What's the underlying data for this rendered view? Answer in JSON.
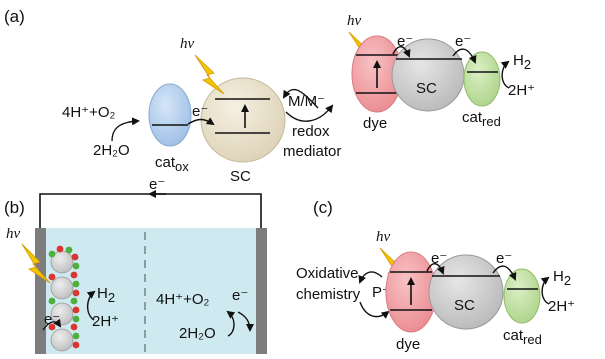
{
  "panels": {
    "a": {
      "label": "(a)",
      "hv_left": "hv",
      "hv_right": "hv",
      "water_products": "4H⁺+O₂",
      "water": "2H₂O",
      "cat_ox_base": "cat",
      "cat_ox_sub": "ox",
      "sc_left": "SC",
      "electron_left": "e⁻",
      "mediator_pair": "M/M⁻",
      "mediator_line1": "redox",
      "mediator_line2": "mediator",
      "dye": "dye",
      "electron_dye": "e⁻",
      "sc_right": "SC",
      "electron_sc": "e⁻",
      "h2_base": "H",
      "h2_sub": "2",
      "protons": "2H⁺",
      "cat_red_base": "cat",
      "cat_red_sub": "red"
    },
    "b": {
      "label": "(b)",
      "hv": "hv",
      "electron_top": "e⁻",
      "electron_left": "e⁻",
      "h2_base": "H",
      "h2_sub": "2",
      "protons": "2H⁺",
      "water_products": "4H⁺+O₂",
      "electron_right": "e⁻",
      "water": "2H₂O"
    },
    "c": {
      "label": "(c)",
      "hv": "hv",
      "oxidative_line1": "Oxidative",
      "oxidative_line2": "chemistry",
      "radical": "P⁺•",
      "electron_dye": "e⁻",
      "sc": "SC",
      "electron_sc": "e⁻",
      "h2_base": "H",
      "h2_sub": "2",
      "protons": "2H⁺",
      "dye": "dye",
      "cat_red_base": "cat",
      "cat_red_sub": "red"
    }
  },
  "colors": {
    "cat_ox": "#b9d3ef",
    "sc_beige": "#ebe3cf",
    "dye": "#f3a3a8",
    "sc_grey": "#cfcfcf",
    "cat_red": "#c7e3a6",
    "electrolyte": "#cfe9f1",
    "electrode": "#7d7d7d",
    "lightning": "#f5c400",
    "bead_red": "#d9362f",
    "bead_green": "#4caf3e"
  }
}
